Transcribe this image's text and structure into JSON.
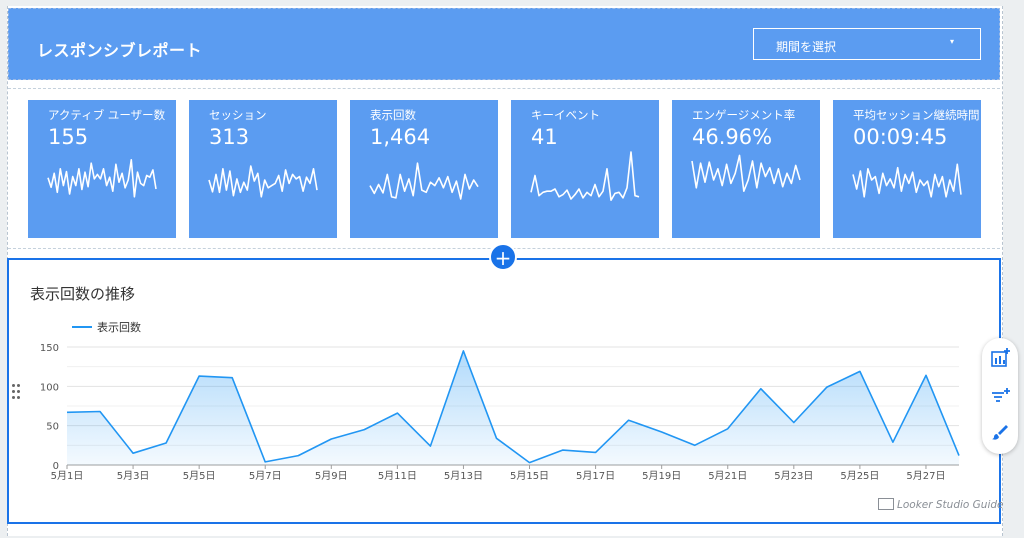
{
  "header": {
    "title": "レスポンシブレポート",
    "date_selector": {
      "label": "期間を選択",
      "caret": "▾"
    }
  },
  "kpis": [
    {
      "label": "アクティブ ユーザー数",
      "value": "155",
      "spark": [
        54,
        37,
        62,
        28,
        70,
        40,
        65,
        25,
        56,
        40,
        70,
        33,
        64,
        38,
        80,
        52,
        60,
        52,
        70,
        40,
        55,
        30,
        78,
        46,
        62,
        36,
        50,
        86,
        20,
        64,
        44,
        40,
        58,
        55,
        68,
        34
      ]
    },
    {
      "label": "セッション",
      "value": "313",
      "spark": [
        50,
        29,
        60,
        28,
        70,
        32,
        66,
        22,
        52,
        28,
        46,
        32,
        75,
        48,
        62,
        20,
        50,
        36,
        40,
        44,
        58,
        30,
        68,
        44,
        60,
        52,
        56,
        30,
        55,
        44,
        70,
        32
      ]
    },
    {
      "label": "表示回数",
      "value": "1,464",
      "spark": [
        40,
        26,
        42,
        27,
        60,
        20,
        18,
        60,
        30,
        52,
        22,
        80,
        32,
        28,
        46,
        40,
        54,
        36,
        56,
        28,
        48,
        16,
        60,
        34,
        50,
        38
      ]
    },
    {
      "label": "キーイベント",
      "value": "41",
      "spark": [
        28,
        58,
        22,
        28,
        30,
        30,
        34,
        20,
        24,
        32,
        16,
        24,
        34,
        18,
        28,
        22,
        42,
        20,
        30,
        70,
        14,
        26,
        28,
        18,
        36,
        100,
        22,
        20
      ]
    },
    {
      "label": "エンゲージメント率",
      "value": "46.96%",
      "spark": [
        84,
        36,
        80,
        46,
        82,
        50,
        70,
        40,
        78,
        44,
        62,
        94,
        30,
        50,
        84,
        36,
        80,
        56,
        72,
        44,
        70,
        38,
        62,
        44,
        76,
        50
      ]
    },
    {
      "label": "平均セッション継続時間",
      "value": "00:09:45",
      "spark": [
        60,
        34,
        66,
        20,
        70,
        50,
        56,
        26,
        62,
        40,
        52,
        36,
        72,
        30,
        60,
        44,
        64,
        28,
        50,
        40,
        48,
        20,
        60,
        38,
        56,
        20,
        50,
        30,
        78,
        24
      ]
    }
  ],
  "add_button": "+",
  "chart_title": "表示回数の推移",
  "chart_data": {
    "type": "area",
    "title": "表示回数の推移",
    "series": [
      {
        "name": "表示回数",
        "values": [
          67,
          68,
          15,
          28,
          113,
          111,
          4,
          12,
          33,
          45,
          66,
          24,
          145,
          34,
          3,
          19,
          16,
          57,
          42,
          25,
          46,
          97,
          54,
          99,
          119,
          29,
          114,
          12
        ]
      }
    ],
    "x_labels": [
      "5月1日",
      "5月3日",
      "5月5日",
      "5月7日",
      "5月9日",
      "5月11日",
      "5月13日",
      "5月15日",
      "5月17日",
      "5月19日",
      "5月21日",
      "5月23日",
      "5月25日",
      "5月27日"
    ],
    "x_label_days": [
      1,
      3,
      5,
      7,
      9,
      11,
      13,
      15,
      17,
      19,
      21,
      23,
      25,
      27
    ],
    "ylim": [
      0,
      150
    ],
    "yticks": [
      0,
      50,
      100,
      150
    ],
    "grid": true,
    "legend_position": "top-left",
    "color": "#2196f3"
  },
  "toolbar": {
    "icons": [
      "add-chart-icon",
      "add-filter-icon",
      "style-brush-icon"
    ]
  },
  "watermark": "Looker Studio Guide",
  "colors": {
    "header_bg": "#5b9cf1",
    "kpi_bg": "#5b9cf1",
    "accent": "#1a73e8",
    "series": "#2196f3"
  }
}
